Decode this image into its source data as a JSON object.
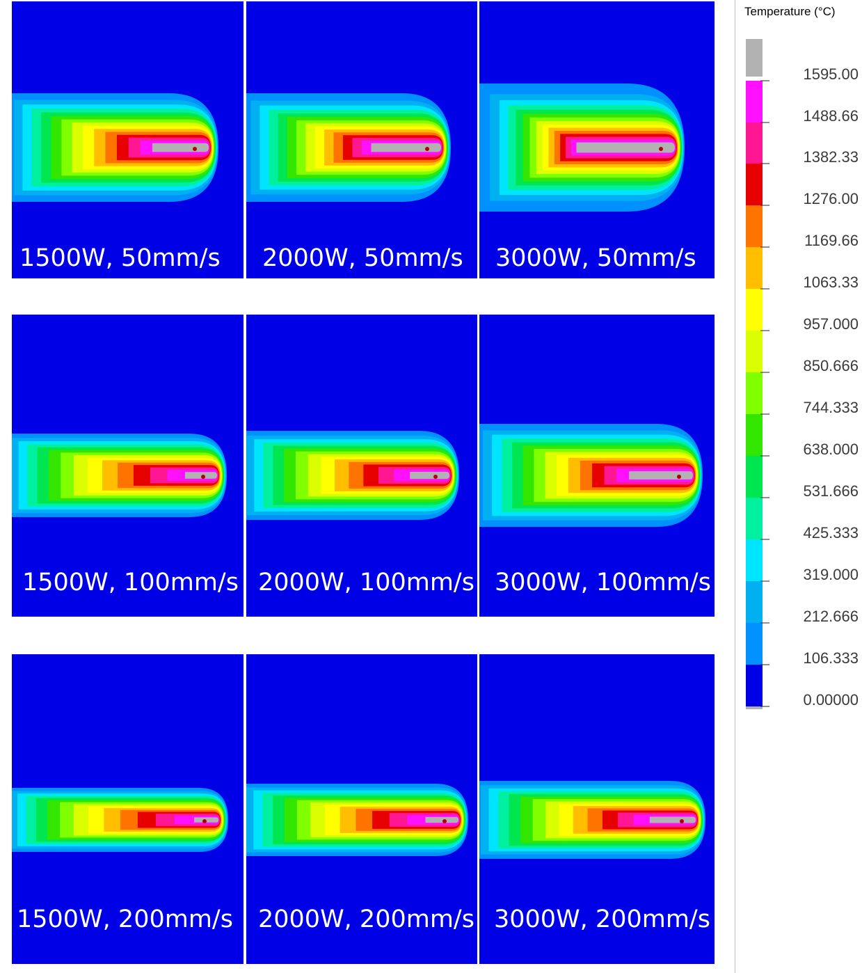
{
  "rows": [
    {
      "speed": "50mm/s",
      "panels": [
        {
          "label": "1500W, 50mm/s",
          "intensity": 0.55
        },
        {
          "label": "2000W, 50mm/s",
          "intensity": 0.7
        },
        {
          "label": "3000W, 50mm/s",
          "intensity": 1.0
        }
      ]
    },
    {
      "speed": "100mm/s",
      "panels": [
        {
          "label": "1500W, 100mm/s",
          "intensity": 0.28
        },
        {
          "label": "2000W, 100mm/s",
          "intensity": 0.36
        },
        {
          "label": "3000W, 100mm/s",
          "intensity": 0.58
        }
      ]
    },
    {
      "speed": "200mm/s",
      "panels": [
        {
          "label": "1500W, 200mm/s",
          "intensity": 0.2
        },
        {
          "label": "2000W, 200mm/s",
          "intensity": 0.28
        },
        {
          "label": "3000W, 200mm/s",
          "intensity": 0.4
        }
      ]
    }
  ],
  "legend": {
    "title": "Temperature (°C)",
    "ticks": [
      "1595.00",
      "1488.66",
      "1382.33",
      "1276.00",
      "1169.66",
      "1063.33",
      "957.000",
      "850.666",
      "744.333",
      "638.000",
      "531.666",
      "425.333",
      "319.000",
      "212.666",
      "106.333",
      "0.00000"
    ],
    "colors": [
      "#b2b2b2",
      "#ff10ff",
      "#ff1693",
      "#e60000",
      "#ff7300",
      "#ffbf00",
      "#ffff00",
      "#d9ff00",
      "#80ff00",
      "#33e600",
      "#00e650",
      "#00f0a0",
      "#00e5ff",
      "#00b0f0",
      "#0090ff",
      "#0000e6"
    ],
    "background_color": "#0000e6"
  }
}
